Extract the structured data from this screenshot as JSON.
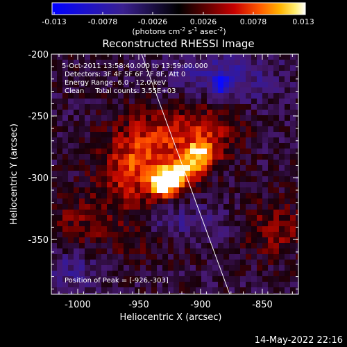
{
  "colorbar": {
    "ticks": [
      "-0.013",
      "-0.0078",
      "-0.0026",
      "0.0026",
      "0.0078",
      "0.013"
    ],
    "units_prefix": "(photons cm",
    "units_exp1": "-2",
    "units_mid1": " s",
    "units_exp2": "-1",
    "units_mid2": " asec",
    "units_exp3": "-2",
    "units_suffix": ")"
  },
  "plot": {
    "title": "Reconstructed RHESSI Image",
    "xlabel": "Heliocentric X (arcsec)",
    "ylabel": "Heliocentric Y (arcsec)",
    "x_ticks": [
      "-1000",
      "-950",
      "-900",
      "-850"
    ],
    "y_ticks": [
      "-200",
      "-250",
      "-300",
      "-350"
    ],
    "info_lines": [
      "5-Oct-2011 13:58:40.000 to 13:59:00.000",
      "Detectors: 3F 4F 5F 6F 7F 8F, Att 0",
      "Energy Range: 6.0 - 12.0 keV",
      "Clean     Total counts: 3.55E+03"
    ],
    "peak_label": "Position of Peak = [-926,-303]"
  },
  "timestamp": "14-May-2022 22:16",
  "colors": {
    "background": "#000000",
    "axes": "#ffffff",
    "limb_line": "#ffffff"
  }
}
